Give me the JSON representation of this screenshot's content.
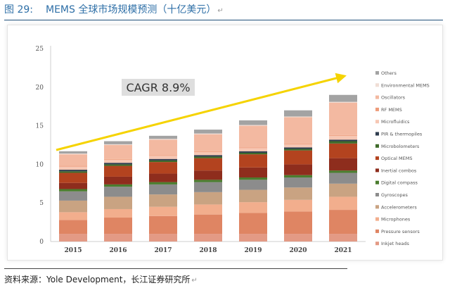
{
  "figure": {
    "number": "图 29:",
    "title": "MEMS 全球市场规模预测（十亿美元）",
    "source": "资料来源：Yole Development，长江证券研究所"
  },
  "chart_data": {
    "type": "bar",
    "stacked": true,
    "categories": [
      "2015",
      "2016",
      "2017",
      "2018",
      "2019",
      "2020",
      "2021"
    ],
    "ylim": [
      0,
      25
    ],
    "yticks": [
      0,
      5,
      10,
      15,
      20,
      25
    ],
    "ytick_labels": [
      "0",
      "5",
      "10",
      "15",
      "20",
      "25"
    ],
    "grid": false,
    "legend_position": "right",
    "annotation": {
      "text": "CAGR 8.9%",
      "arrow": "rising trend arrow from 2015 to 2021"
    },
    "series": [
      {
        "name": "Inkjet heads",
        "color": "#e39a85",
        "values": [
          1.0,
          1.0,
          1.0,
          1.0,
          1.0,
          1.0,
          1.0
        ]
      },
      {
        "name": "Pressure sensors",
        "color": "#df8563",
        "values": [
          1.8,
          2.1,
          2.3,
          2.5,
          2.7,
          2.9,
          3.1
        ]
      },
      {
        "name": "Microphones",
        "color": "#f2ae8d",
        "values": [
          1.0,
          1.1,
          1.2,
          1.3,
          1.4,
          1.5,
          1.7
        ]
      },
      {
        "name": "Accelerometers",
        "color": "#c9a382",
        "values": [
          1.5,
          1.6,
          1.6,
          1.6,
          1.6,
          1.6,
          1.7
        ]
      },
      {
        "name": "Gyroscopes",
        "color": "#8c8c8c",
        "values": [
          1.2,
          1.3,
          1.3,
          1.3,
          1.3,
          1.3,
          1.4
        ]
      },
      {
        "name": "Digital compass",
        "color": "#4a7d2e",
        "values": [
          0.3,
          0.3,
          0.3,
          0.3,
          0.3,
          0.3,
          0.3
        ]
      },
      {
        "name": "Inertial combos",
        "color": "#8e2d1d",
        "values": [
          0.8,
          1.0,
          1.1,
          1.2,
          1.3,
          1.4,
          1.6
        ]
      },
      {
        "name": "Optical MEMS",
        "color": "#b3431f",
        "values": [
          1.3,
          1.4,
          1.5,
          1.6,
          1.7,
          1.8,
          1.9
        ]
      },
      {
        "name": "Microbolometers",
        "color": "#3f6b2a",
        "values": [
          0.2,
          0.2,
          0.2,
          0.2,
          0.2,
          0.2,
          0.3
        ]
      },
      {
        "name": "PIR & thermopiles",
        "color": "#2f3d4f",
        "values": [
          0.2,
          0.2,
          0.2,
          0.2,
          0.2,
          0.2,
          0.2
        ]
      },
      {
        "name": "Microfluidics",
        "color": "#f6c7b4",
        "values": [
          0.4,
          0.4,
          0.4,
          0.4,
          0.4,
          0.4,
          0.5
        ]
      },
      {
        "name": "RF MEMS",
        "color": "#ee9c7a",
        "values": [
          0.1,
          0.1,
          0.1,
          0.1,
          0.1,
          0.1,
          0.1
        ]
      },
      {
        "name": "Oscillators",
        "color": "#f3b9a1",
        "values": [
          1.5,
          1.8,
          2.0,
          2.2,
          2.8,
          3.4,
          4.2
        ]
      },
      {
        "name": "Environmental MEMS",
        "color": "#f0ded5",
        "values": [
          0.1,
          0.1,
          0.1,
          0.1,
          0.1,
          0.1,
          0.1
        ]
      },
      {
        "name": "Others",
        "color": "#a3a3a3",
        "values": [
          0.3,
          0.4,
          0.4,
          0.5,
          0.6,
          0.8,
          0.9
        ]
      }
    ]
  }
}
